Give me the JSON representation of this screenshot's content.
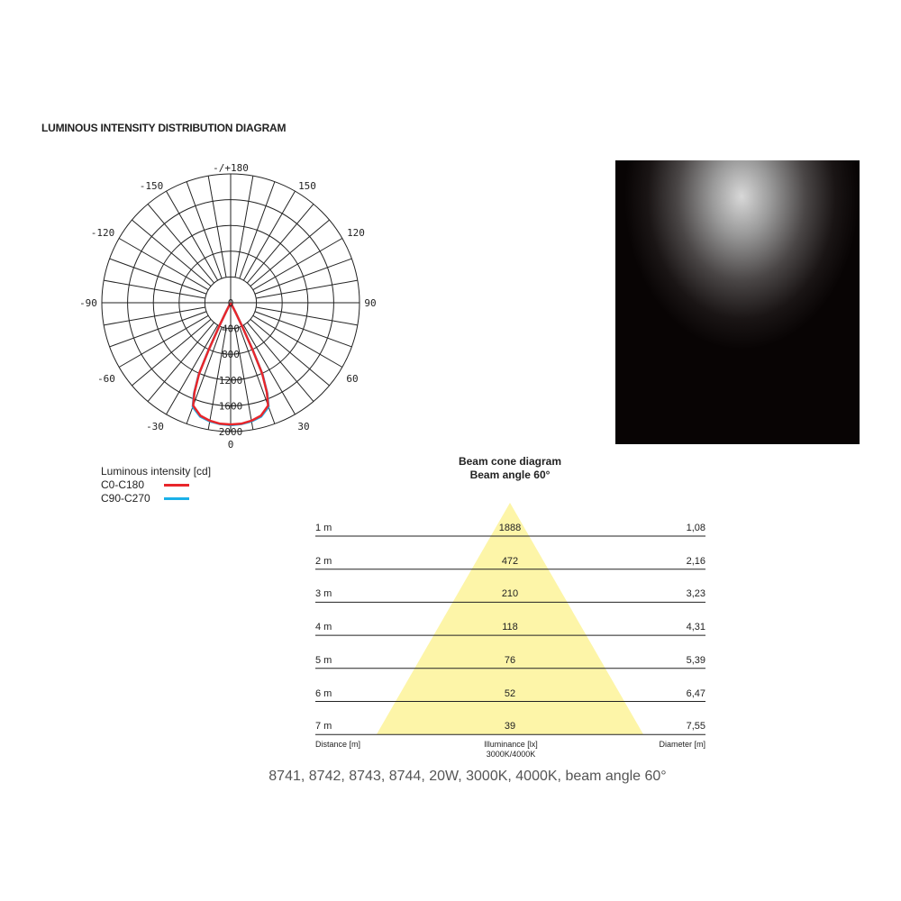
{
  "title": "LUMINOUS INTENSITY DISTRIBUTION DIAGRAM",
  "polar": {
    "angle_labels": {
      "top": "-/+180",
      "n150": "-150",
      "p150": "150",
      "n120": "-120",
      "p120": "120",
      "n90": "-90",
      "p90": "90",
      "n60": "-60",
      "p60": "60",
      "n30": "-30",
      "p30": "30",
      "bottom": "0"
    },
    "ring_labels": [
      "0",
      "400",
      "800",
      "1200",
      "1600",
      "2000"
    ],
    "max_cd": 2000,
    "series": [
      {
        "name": "C0-C180",
        "color": "#e8262b",
        "gamma": [
          0,
          5,
          10,
          15,
          20,
          22,
          24,
          25,
          26,
          27,
          30
        ],
        "cd": [
          1890,
          1885,
          1860,
          1815,
          1700,
          1500,
          1200,
          800,
          400,
          150,
          0
        ]
      },
      {
        "name": "C90-C270",
        "color": "#1ab0e8",
        "gamma": [
          0,
          5,
          10,
          15,
          20,
          22,
          24,
          25,
          26,
          27,
          30
        ],
        "cd": [
          1900,
          1890,
          1870,
          1830,
          1720,
          1520,
          1220,
          820,
          420,
          160,
          0
        ]
      }
    ]
  },
  "legend": {
    "title": "Luminous intensity [cd]",
    "items": [
      {
        "label": "C0-C180",
        "color": "#e8262b"
      },
      {
        "label": "C90-C270",
        "color": "#1ab0e8"
      }
    ]
  },
  "cone": {
    "title": "Beam cone diagram",
    "subtitle": "Beam angle 60°",
    "cone_color": "#fdf5a8",
    "rows": [
      {
        "distance": "1 m",
        "illuminance": "1888",
        "diameter": "1,08"
      },
      {
        "distance": "2 m",
        "illuminance": "472",
        "diameter": "2,16"
      },
      {
        "distance": "3 m",
        "illuminance": "210",
        "diameter": "3,23"
      },
      {
        "distance": "4 m",
        "illuminance": "118",
        "diameter": "4,31"
      },
      {
        "distance": "5 m",
        "illuminance": "76",
        "diameter": "5,39"
      },
      {
        "distance": "6 m",
        "illuminance": "52",
        "diameter": "6,47"
      },
      {
        "distance": "7 m",
        "illuminance": "39",
        "diameter": "7,55"
      }
    ],
    "footer": {
      "distance": "Distance [m]",
      "illuminance": "Illuminance [lx]",
      "cct": "3000K/4000K",
      "diameter": "Diameter [m]"
    }
  },
  "caption": "8741, 8742, 8743, 8744, 20W, 3000K, 4000K, beam angle 60°"
}
